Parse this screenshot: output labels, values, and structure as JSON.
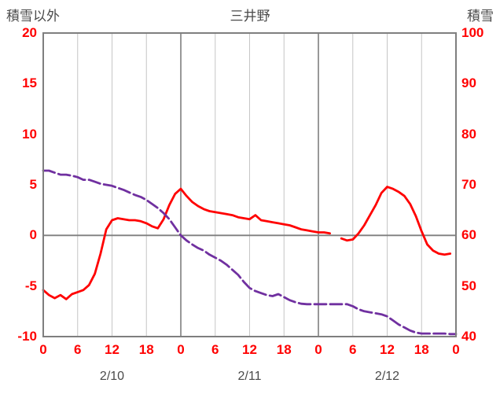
{
  "colors": {
    "tick_text": "#ff0000",
    "label_text": "#4a4a4a",
    "frame": "#7f7f7f",
    "grid_minor": "#c6c6c6",
    "grid_major": "#7f7f7f",
    "background": "#ffffff"
  },
  "chart_data": {
    "type": "line",
    "title": "三井野",
    "left_axis": {
      "label": "積雪以外",
      "max": 20,
      "min": -10,
      "ticks": [
        20,
        15,
        10,
        5,
        0,
        -5,
        -10
      ]
    },
    "right_axis": {
      "label": "積雪",
      "max": 100,
      "min": 40,
      "ticks": [
        100,
        90,
        80,
        70,
        60,
        50,
        40
      ]
    },
    "x_axis": {
      "hours_total": 72,
      "tick_interval": 6,
      "tick_labels": [
        "0",
        "6",
        "12",
        "18",
        "0",
        "6",
        "12",
        "18",
        "0",
        "6",
        "12",
        "18",
        "0"
      ],
      "date_labels": [
        "2/10",
        "2/11",
        "2/12"
      ]
    },
    "grid": {
      "vertical": true,
      "horizontal_zero_line": true,
      "legend": "none"
    },
    "series": [
      {
        "axis": "left",
        "color": "#ff0000",
        "style": "solid",
        "width": 2.8,
        "values": [
          -5.4,
          -5.9,
          -6.2,
          -5.9,
          -6.3,
          -5.8,
          -5.6,
          -5.4,
          -4.9,
          -3.8,
          -1.8,
          0.6,
          1.5,
          1.7,
          1.6,
          1.5,
          1.5,
          1.4,
          1.2,
          0.9,
          0.7,
          1.6,
          3.0,
          4.1,
          4.6,
          3.9,
          3.3,
          2.9,
          2.6,
          2.4,
          2.3,
          2.2,
          2.1,
          2.0,
          1.8,
          1.7,
          1.6,
          2.0,
          1.5,
          1.4,
          1.3,
          1.2,
          1.1,
          1.0,
          0.8,
          0.6,
          0.5,
          0.4,
          0.3,
          0.3,
          0.2,
          null,
          -0.3,
          -0.5,
          -0.4,
          0.2,
          1.0,
          2.0,
          3.0,
          4.2,
          4.8,
          4.6,
          4.3,
          3.9,
          3.1,
          1.9,
          0.4,
          -0.9,
          -1.5,
          -1.8,
          -1.9,
          -1.8,
          null
        ]
      },
      {
        "axis": "right",
        "color": "#7030a0",
        "style": "dashed",
        "width": 2.8,
        "values": [
          72.8,
          72.8,
          72.4,
          72.0,
          72.0,
          71.8,
          71.5,
          71.0,
          71.0,
          70.6,
          70.2,
          70.0,
          69.8,
          69.4,
          69.0,
          68.5,
          68.0,
          67.6,
          67.0,
          66.2,
          65.4,
          64.4,
          63.2,
          61.6,
          60.0,
          59.0,
          58.2,
          57.5,
          57.0,
          56.2,
          55.6,
          55.0,
          54.2,
          53.2,
          52.2,
          50.8,
          49.6,
          49.0,
          48.6,
          48.2,
          48.0,
          48.4,
          47.8,
          47.2,
          46.8,
          46.5,
          46.4,
          46.4,
          46.4,
          46.4,
          46.4,
          46.4,
          46.4,
          46.4,
          46.0,
          45.4,
          45.0,
          44.8,
          44.6,
          44.4,
          44.0,
          43.2,
          42.4,
          41.8,
          41.2,
          40.8,
          40.6,
          40.6,
          40.6,
          40.6,
          40.6,
          40.5,
          40.5
        ]
      }
    ]
  }
}
